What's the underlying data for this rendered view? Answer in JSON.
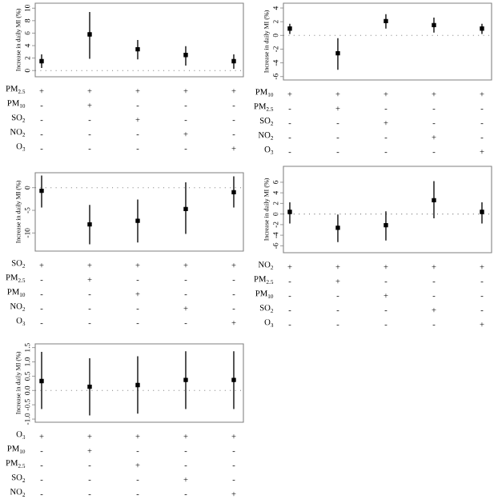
{
  "chart_data": [
    {
      "type": "scatter",
      "ylabel": "Increase in daily MI (%)",
      "categories": [
        "+ - - - -",
        "+ + - - -",
        "+ - + - -",
        "+ - - + -",
        "+ - - - +"
      ],
      "annotations": [
        "PM$_{2.5}$",
        "PM$_{10}$",
        "SO$_{2}$",
        "NO$_{2}$",
        "O$_{3}$"
      ],
      "values": [
        1.5,
        5.8,
        3.4,
        2.5,
        1.5
      ],
      "errors": [
        [
          0.4,
          2.6
        ],
        [
          1.9,
          9.4
        ],
        [
          1.8,
          4.9
        ],
        [
          0.8,
          3.9
        ],
        [
          0.3,
          2.6
        ]
      ],
      "color": "#000000",
      "marker": "square",
      "ylim": [
        -1.0,
        10.8
      ],
      "yticks": [
        0,
        2,
        4,
        6,
        8,
        10
      ],
      "ref_lines": [
        {
          "axis": "y",
          "value": 0,
          "line_style": "dotted"
        }
      ]
    },
    {
      "type": "scatter",
      "ylabel": "Increase in daily MI (%)",
      "categories": [
        "+ - - - -",
        "+ + - - -",
        "+ - + - -",
        "+ - - + -",
        "+ - - - +"
      ],
      "annotations": [
        "PM$_{10}$",
        "PM$_{2.5}$",
        "SO$_{2}$",
        "NO$_{2}$",
        "O$_{3}$"
      ],
      "values": [
        1.0,
        -2.6,
        2.1,
        1.5,
        1.0
      ],
      "errors": [
        [
          0.2,
          1.7
        ],
        [
          -5.0,
          -0.4
        ],
        [
          1.0,
          3.1
        ],
        [
          0.4,
          2.6
        ],
        [
          0.2,
          1.7
        ]
      ],
      "color": "#000000",
      "marker": "square",
      "ylim": [
        -6.5,
        4.7
      ],
      "yticks": [
        -6,
        -4,
        -2,
        0,
        2,
        4
      ],
      "ref_lines": [
        {
          "axis": "y",
          "value": 0,
          "line_style": "dotted"
        }
      ]
    },
    {
      "type": "scatter",
      "ylabel": "Increase in daily MI (%)",
      "categories": [
        "+ - - - -",
        "+ + - - -",
        "+ - + - -",
        "+ - - + -",
        "+ - - - +"
      ],
      "annotations": [
        "SO$_{2}$",
        "PM$_{2.5}$",
        "PM$_{10}$",
        "NO$_{2}$",
        "O$_{3}$"
      ],
      "values": [
        -0.7,
        -8.1,
        -7.3,
        -4.7,
        -1.0
      ],
      "errors": [
        [
          -4.4,
          2.7
        ],
        [
          -12.5,
          -3.8
        ],
        [
          -12.1,
          -2.6
        ],
        [
          -10.2,
          1.2
        ],
        [
          -4.4,
          2.5
        ]
      ],
      "color": "#000000",
      "marker": "square",
      "ylim": [
        -14.0,
        3.3
      ],
      "yticks": [
        -10,
        -5,
        0
      ],
      "ref_lines": [
        {
          "axis": "y",
          "value": 0,
          "line_style": "dotted"
        }
      ]
    },
    {
      "type": "scatter",
      "ylabel": "Increase in daily MI (%)",
      "categories": [
        "+ - - - -",
        "+ + - - -",
        "+ - + - -",
        "+ - - + -",
        "+ - - - +"
      ],
      "annotations": [
        "NO$_{2}$",
        "PM$_{2.5}$",
        "PM$_{10}$",
        "SO$_{2}$",
        "O$_{3}$"
      ],
      "values": [
        0.4,
        -2.6,
        -2.1,
        2.6,
        0.4
      ],
      "errors": [
        [
          -1.8,
          2.2
        ],
        [
          -5.3,
          -0.1
        ],
        [
          -5.0,
          0.5
        ],
        [
          -0.8,
          6.2
        ],
        [
          -1.8,
          2.2
        ]
      ],
      "color": "#000000",
      "marker": "square",
      "ylim": [
        -7.3,
        9.0
      ],
      "yticks": [
        -6,
        -4,
        -2,
        0,
        2,
        4,
        6
      ],
      "ref_lines": [
        {
          "axis": "y",
          "value": 0,
          "line_style": "dotted"
        }
      ]
    },
    {
      "type": "scatter",
      "ylabel": "Increase in daily MI (%)",
      "categories": [
        "+ - - - -",
        "+ + - - -",
        "+ - + - -",
        "+ - - + -",
        "+ - - - +"
      ],
      "annotations": [
        "O$_{3}$",
        "PM$_{10}$",
        "PM$_{2.5}$",
        "SO$_{2}$",
        "NO$_{2}$"
      ],
      "values": [
        0.33,
        0.13,
        0.19,
        0.37,
        0.37
      ],
      "errors": [
        [
          -0.65,
          1.35
        ],
        [
          -0.87,
          1.13
        ],
        [
          -0.81,
          1.2
        ],
        [
          -0.65,
          1.37
        ],
        [
          -0.65,
          1.37
        ]
      ],
      "color": "#000000",
      "marker": "square",
      "ylim": [
        -1.11,
        1.63
      ],
      "yticks": [
        {
          "value": -1.0,
          "label": "-1.0"
        },
        {
          "value": -0.5,
          "label": "-0.5"
        },
        {
          "value": 0.0,
          "label": "0.0"
        },
        {
          "value": 0.5,
          "label": "0.5"
        },
        {
          "value": 1.0,
          "label": "1.0"
        },
        {
          "value": 1.5,
          "label": "1.5"
        }
      ],
      "ref_lines": [
        {
          "axis": "y",
          "value": 0,
          "line_style": "dotted"
        }
      ]
    }
  ]
}
